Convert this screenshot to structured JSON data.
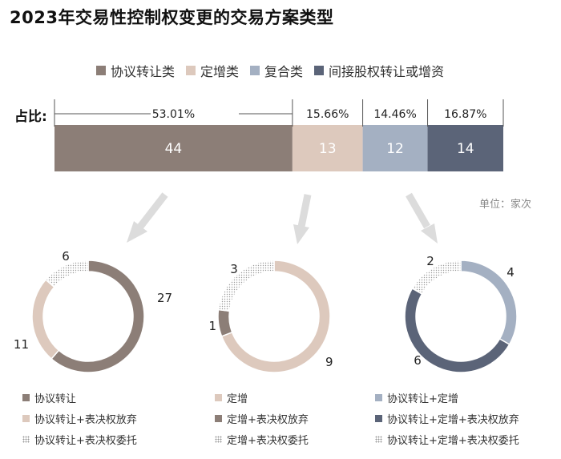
{
  "title": "2023年交易性控制权变更的交易方案类型",
  "share_label": "占比:",
  "unit_label": "单位：家次",
  "chart_data": [
    {
      "type": "bar",
      "orientation": "horizontal-stacked",
      "title": "2023年交易性控制权变更的交易方案类型",
      "series": [
        {
          "name": "协议转让类",
          "value": 44,
          "percent": "53.01%",
          "color": "#8c7e77"
        },
        {
          "name": "定增类",
          "value": 13,
          "percent": "15.66%",
          "color": "#ddc9bd"
        },
        {
          "name": "复合类",
          "value": 12,
          "percent": "14.46%",
          "color": "#a4b0c2"
        },
        {
          "name": "间接股权转让或增资",
          "value": 14,
          "percent": "16.87%",
          "color": "#5b6478"
        }
      ],
      "legend_position": "top"
    },
    {
      "type": "pie",
      "subtype": "donut",
      "slices": [
        {
          "label": "协议转让",
          "value": 27,
          "color": "#8c7e77",
          "pattern": "solid"
        },
        {
          "label": "协议转让+表决权放弃",
          "value": 11,
          "color": "#ddc9bd",
          "pattern": "solid"
        },
        {
          "label": "协议转让+表决权委托",
          "value": 6,
          "color": "#8c7e77",
          "pattern": "dotted"
        }
      ]
    },
    {
      "type": "pie",
      "subtype": "donut",
      "slices": [
        {
          "label": "定增",
          "value": 9,
          "color": "#ddc9bd",
          "pattern": "solid"
        },
        {
          "label": "定增+表决权放弃",
          "value": 1,
          "color": "#8c7e77",
          "pattern": "solid"
        },
        {
          "label": "定增+表决权委托",
          "value": 3,
          "color": "#ddc9bd",
          "pattern": "dotted"
        }
      ]
    },
    {
      "type": "pie",
      "subtype": "donut",
      "slices": [
        {
          "label": "协议转让+定增",
          "value": 4,
          "color": "#a4b0c2",
          "pattern": "solid"
        },
        {
          "label": "协议转让+定增+表决权放弃",
          "value": 6,
          "color": "#5b6478",
          "pattern": "solid"
        },
        {
          "label": "协议转让+定增+表决权委托",
          "value": 2,
          "color": "#5b6478",
          "pattern": "dotted"
        }
      ]
    }
  ]
}
